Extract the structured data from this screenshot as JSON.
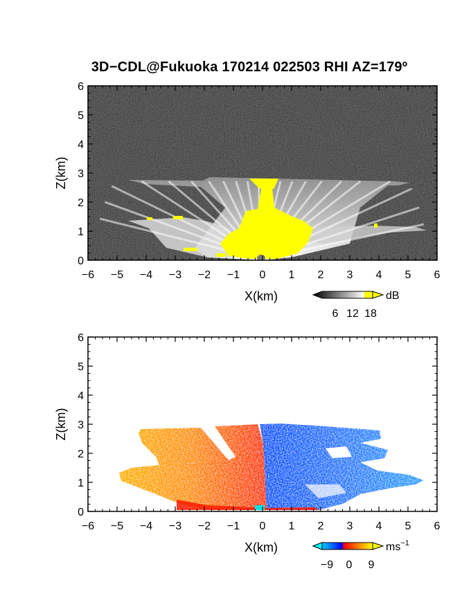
{
  "title": "3D−CDL@Fukuoka 170214 022503 RHI AZ=179º",
  "chart_data": [
    {
      "type": "heatmap",
      "quantity": "reflectivity",
      "xlabel": "X(km)",
      "ylabel": "Z(km)",
      "xlim": [
        -6,
        6
      ],
      "ylim": [
        0,
        6
      ],
      "xticks": [
        "−6",
        "−5",
        "−4",
        "−3",
        "−2",
        "−1",
        "0",
        "1",
        "2",
        "3",
        "4",
        "5",
        "6"
      ],
      "yticks": [
        "0",
        "1",
        "2",
        "3",
        "4",
        "5",
        "6"
      ],
      "colorbar": {
        "unit": "dB",
        "ticks": [
          "6",
          "12",
          "18"
        ],
        "colors": [
          "#000000",
          "#2a2a2a",
          "#555555",
          "#808080",
          "#aaaaaa",
          "#d5d5d5",
          "#ffffff",
          "#ffff00"
        ]
      },
      "features": {
        "noise_background": "#3a3a3a",
        "strong_echo_color": "#ffff00",
        "layer_tops_km": [
          2.8,
          1.4,
          1.15
        ]
      }
    },
    {
      "type": "heatmap",
      "quantity": "doppler_velocity",
      "xlabel": "X(km)",
      "ylabel": "Z(km)",
      "xlim": [
        -6,
        6
      ],
      "ylim": [
        0,
        6
      ],
      "xticks": [
        "−6",
        "−5",
        "−4",
        "−3",
        "−2",
        "−1",
        "0",
        "1",
        "2",
        "3",
        "4",
        "5",
        "6"
      ],
      "yticks": [
        "0",
        "1",
        "2",
        "3",
        "4",
        "5",
        "6"
      ],
      "colorbar": {
        "unit": "ms",
        "unit_exponent": "−1",
        "ticks": [
          "−9",
          "0",
          "9"
        ],
        "colors": [
          "#00ffff",
          "#00b4ff",
          "#0064ff",
          "#0000ff",
          "#ff0000",
          "#ff6400",
          "#ffb400",
          "#ffff00"
        ]
      },
      "features": {
        "negative_side": "x > 0 (blue)",
        "positive_side": "x < 0 (orange/red)",
        "max_height_km": 2.95
      }
    }
  ]
}
